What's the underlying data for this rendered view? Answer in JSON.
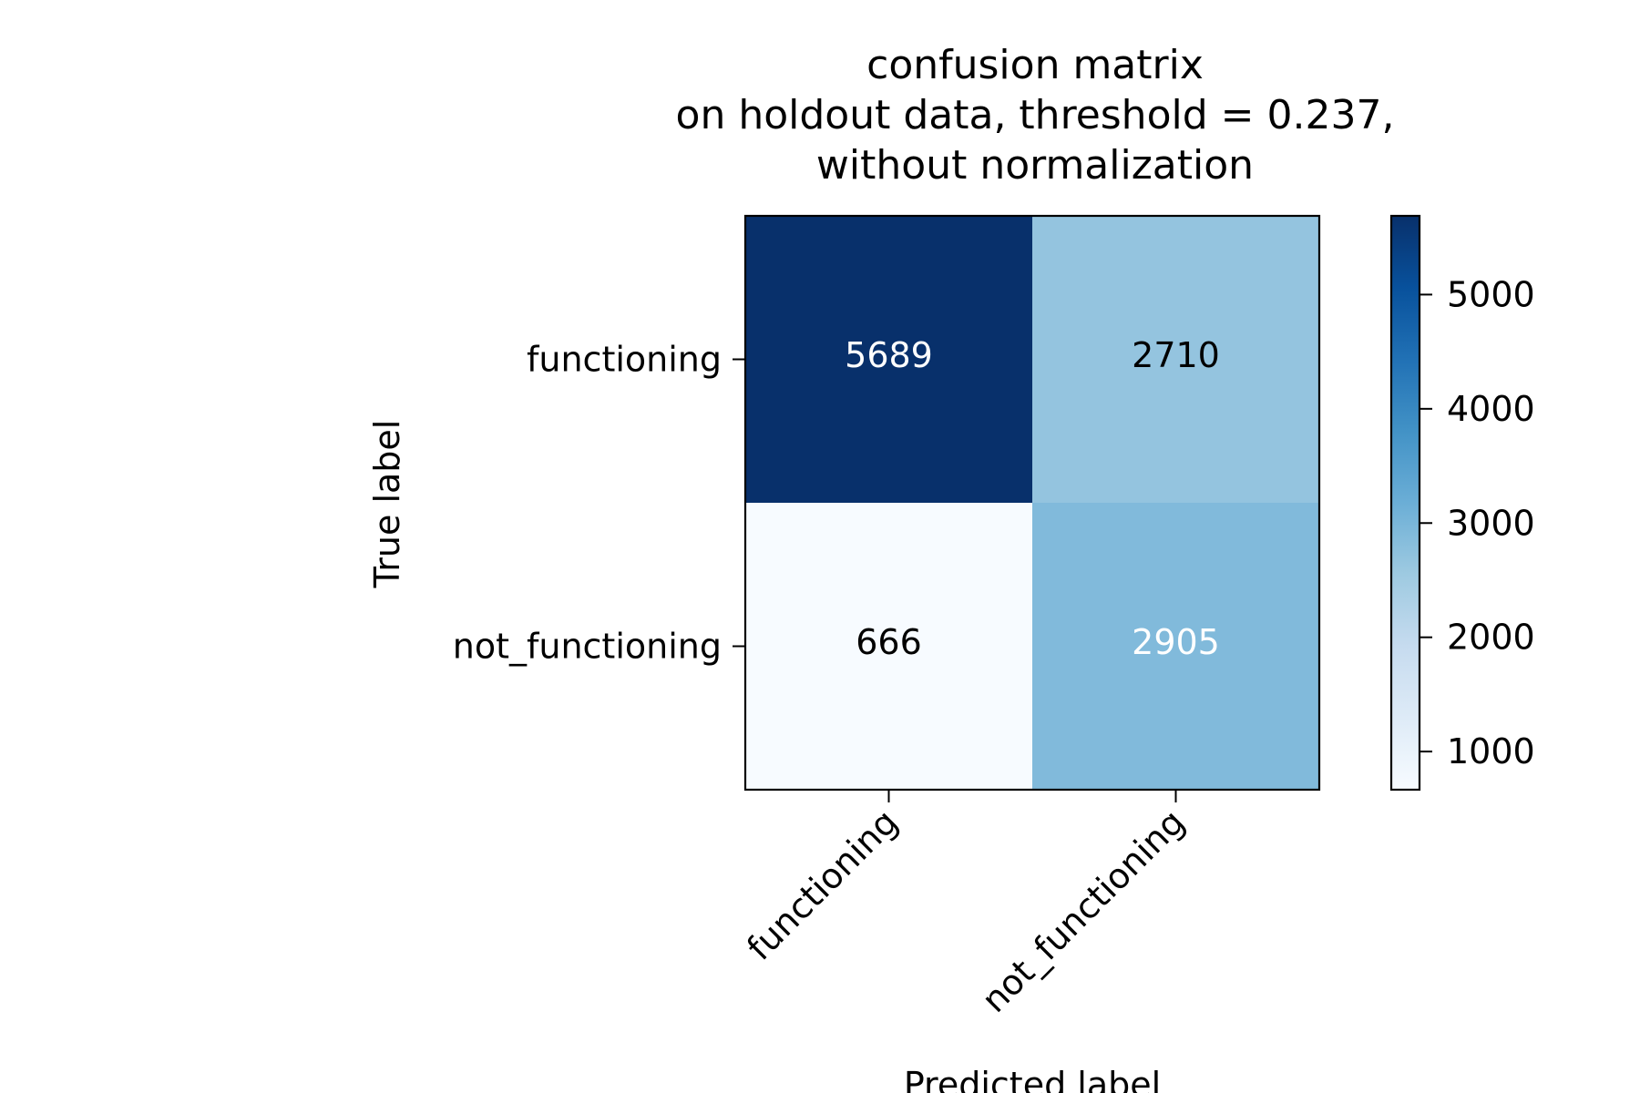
{
  "chart_data": {
    "type": "heatmap",
    "title_lines": [
      "confusion matrix",
      "on holdout data, threshold = 0.237,",
      "without normalization"
    ],
    "xlabel": "Predicted label",
    "ylabel": "True label",
    "x_categories": [
      "functioning",
      "not_functioning"
    ],
    "y_categories": [
      "functioning",
      "not_functioning"
    ],
    "values": [
      [
        5689,
        2710
      ],
      [
        666,
        2905
      ]
    ],
    "colormap": "Blues",
    "colorbar": {
      "min": 666,
      "max": 5689,
      "ticks": [
        1000,
        2000,
        3000,
        4000,
        5000
      ]
    },
    "colors": {
      "cell_5689": "#08306b",
      "cell_2710": "#94c4df",
      "cell_666": "#f7fbff",
      "cell_2905": "#81badb",
      "text_on_dark": "#ffffff",
      "text_on_light": "#000000"
    }
  }
}
